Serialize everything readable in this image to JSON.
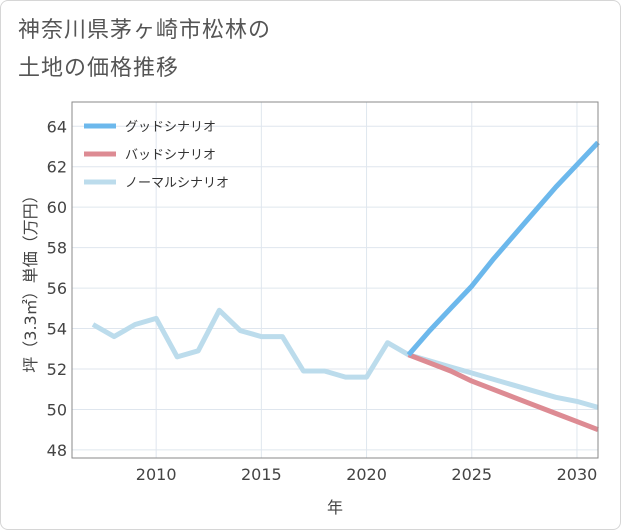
{
  "title": "神奈川県茅ヶ崎市松林の\n土地の価格推移",
  "chart_data": {
    "type": "line",
    "xlabel": "年",
    "ylabel": "坪（3.3㎡）単価（万円）",
    "xlim": [
      2006,
      2031
    ],
    "ylim": [
      47.6,
      65.2
    ],
    "xticks": [
      2010,
      2015,
      2020,
      2025,
      2030
    ],
    "yticks": [
      48,
      50,
      52,
      54,
      56,
      58,
      60,
      62,
      64
    ],
    "grid": true,
    "legend_position": "top-left",
    "series": [
      {
        "name": "グッドシナリオ",
        "color": "#6cb8ec",
        "x": [
          2022,
          2023,
          2024,
          2025,
          2026,
          2027,
          2028,
          2029,
          2030,
          2031
        ],
        "values": [
          52.7,
          53.9,
          55.0,
          56.1,
          57.4,
          58.6,
          59.8,
          61.0,
          62.1,
          63.2
        ]
      },
      {
        "name": "バッドシナリオ",
        "color": "#dd8b93",
        "x": [
          2022,
          2023,
          2024,
          2025,
          2026,
          2027,
          2028,
          2029,
          2030,
          2031
        ],
        "values": [
          52.7,
          52.3,
          51.9,
          51.4,
          51.0,
          50.6,
          50.2,
          49.8,
          49.4,
          49.0
        ]
      },
      {
        "name": "ノーマルシナリオ",
        "color": "#bcdcec",
        "x": [
          2007,
          2008,
          2009,
          2010,
          2011,
          2012,
          2013,
          2014,
          2015,
          2016,
          2017,
          2018,
          2019,
          2020,
          2021,
          2022,
          2023,
          2024,
          2025,
          2026,
          2027,
          2028,
          2029,
          2030,
          2031
        ],
        "values": [
          54.2,
          53.6,
          54.2,
          54.5,
          52.6,
          52.9,
          54.9,
          53.9,
          53.6,
          53.6,
          51.9,
          51.9,
          51.6,
          51.6,
          53.3,
          52.7,
          52.4,
          52.1,
          51.8,
          51.5,
          51.2,
          50.9,
          50.6,
          50.4,
          50.1
        ]
      }
    ]
  }
}
